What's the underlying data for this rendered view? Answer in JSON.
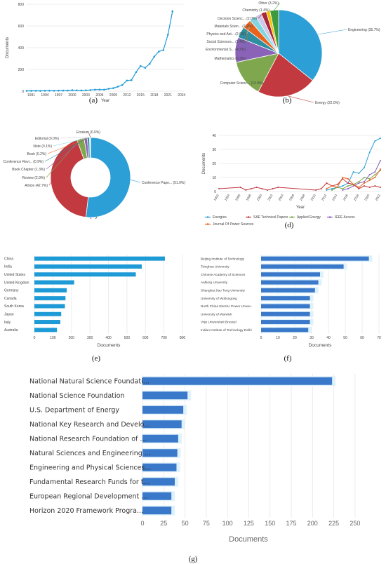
{
  "colors": {
    "accent": "#1e9bd7",
    "bar_inner": "#3a78c9",
    "bar_glow": "#dff2fb",
    "grid": "#e8e8e8"
  },
  "chart_data": [
    {
      "id": "a",
      "type": "line",
      "caption": "(a)",
      "xlabel": "Year",
      "ylabel": "Documents",
      "xlim": [
        1990,
        2024.5
      ],
      "ylim": [
        0,
        800
      ],
      "xticks": [
        "1991",
        "1994",
        "1997",
        "2000",
        "2003",
        "2006",
        "2009",
        "2012",
        "2015",
        "2018",
        "2021",
        "2024"
      ],
      "yticks": [
        "0",
        "200",
        "400",
        "600",
        "800"
      ],
      "x": [
        1990,
        1991,
        1992,
        1993,
        1994,
        1995,
        1996,
        1997,
        1998,
        1999,
        2000,
        2001,
        2002,
        2003,
        2004,
        2005,
        2006,
        2007,
        2008,
        2009,
        2010,
        2011,
        2012,
        2013,
        2014,
        2015,
        2016,
        2017,
        2018,
        2019,
        2020,
        2021,
        2022
      ],
      "values": [
        3,
        3,
        4,
        3,
        4,
        5,
        4,
        5,
        6,
        6,
        9,
        8,
        7,
        8,
        11,
        14,
        15,
        14,
        22,
        28,
        42,
        58,
        98,
        102,
        175,
        232,
        215,
        252,
        318,
        365,
        378,
        520,
        735
      ]
    },
    {
      "id": "b",
      "type": "pie",
      "caption": "(b)",
      "slices": [
        {
          "label": "Engineering (35.7%)",
          "value": 35.7,
          "color": "#2b9fd6"
        },
        {
          "label": "Energy (22.0%)",
          "value": 22.0,
          "color": "#c2393f"
        },
        {
          "label": "Computer Scienc... (13.9%)",
          "value": 13.9,
          "color": "#7fa84e"
        },
        {
          "label": "Mathematics (9.3%)",
          "value": 9.3,
          "color": "#8a63b8"
        },
        {
          "label": "Environmental S... (4.2%)",
          "value": 4.2,
          "color": "#2f8fa0"
        },
        {
          "label": "Social Sciences... (3.4%)",
          "value": 3.4,
          "color": "#e8641d"
        },
        {
          "label": "Physics and Ast... (2.6%)",
          "value": 2.6,
          "color": "#7ed6e0"
        },
        {
          "label": "Materials Scien... (2.2%)",
          "value": 2.2,
          "color": "#d0c8e8"
        },
        {
          "label": "Decision Scienc... (2.0%)",
          "value": 2.0,
          "color": "#a8283a"
        },
        {
          "label": "Chemistry (1.4%)",
          "value": 1.4,
          "color": "#f2c300"
        },
        {
          "label": "Other (3.2%)",
          "value": 3.2,
          "color": "#3f9a3f"
        }
      ]
    },
    {
      "id": "c",
      "type": "pie",
      "caption": "(c)",
      "slices": [
        {
          "label": "Conference Pape... (51.9%)",
          "value": 51.9,
          "color": "#2b9fd6"
        },
        {
          "label": "Article (42.7%)",
          "value": 42.7,
          "color": "#c2393f"
        },
        {
          "label": "Review (2.9%)",
          "value": 2.9,
          "color": "#7fa84e"
        },
        {
          "label": "Book Chapter (1.3%)",
          "value": 1.3,
          "color": "#8a63b8"
        },
        {
          "label": "Conference Revi... (0.9%)",
          "value": 0.9,
          "color": "#2f8fa0"
        },
        {
          "label": "Book (0.2%)",
          "value": 0.2,
          "color": "#e8641d"
        },
        {
          "label": "Note (0.1%)",
          "value": 0.1,
          "color": "#7ed6e0"
        },
        {
          "label": "Editorial (0.0%)",
          "value": 0.05,
          "color": "#d0c8e8"
        },
        {
          "label": "Erratum (0.0%)",
          "value": 0.05,
          "color": "#a8283a"
        }
      ]
    },
    {
      "id": "d",
      "type": "line",
      "caption": "(d)",
      "xlabel": "Year",
      "ylabel": "Documents",
      "xlim": [
        1992,
        2022
      ],
      "ylim": [
        0,
        40
      ],
      "xticks": [
        "1992",
        "1994",
        "1996",
        "1998",
        "2000",
        "2002",
        "2004",
        "2006",
        "2008",
        "2010",
        "2012",
        "2014",
        "2016",
        "2018",
        "2020",
        "2022"
      ],
      "yticks": [
        "0",
        "10",
        "20",
        "30",
        "40"
      ],
      "series": [
        {
          "name": "Energies",
          "color": "#2b9fd6",
          "x": [
            2012,
            2013,
            2014,
            2015,
            2016,
            2017,
            2018,
            2019,
            2020,
            2021,
            2022
          ],
          "y": [
            1,
            2,
            3,
            4,
            6,
            14,
            13,
            17,
            28,
            36,
            38
          ]
        },
        {
          "name": "SAE Technical Papers",
          "color": "#c2393f",
          "x": [
            1992,
            1996,
            1997,
            1998,
            1999,
            2000,
            2001,
            2002,
            2003,
            2010,
            2011,
            2012,
            2013,
            2014,
            2015,
            2016,
            2017,
            2018,
            2019,
            2020,
            2021,
            2022
          ],
          "y": [
            2,
            3,
            1,
            2,
            3,
            2,
            1,
            2,
            3,
            1,
            2,
            6,
            4,
            5,
            9,
            6,
            5,
            2,
            4,
            3,
            4,
            3
          ]
        },
        {
          "name": "Applied Energy",
          "color": "#7fa84e",
          "x": [
            2013,
            2014,
            2015,
            2016,
            2017,
            2018,
            2019,
            2020,
            2021,
            2022
          ],
          "y": [
            1,
            3,
            2,
            4,
            5,
            7,
            10,
            9,
            12,
            15
          ]
        },
        {
          "name": "IEEE Access",
          "color": "#8a63b8",
          "x": [
            2015,
            2016,
            2017,
            2018,
            2019,
            2020,
            2021,
            2022
          ],
          "y": [
            1,
            2,
            4,
            6,
            7,
            12,
            14,
            22
          ]
        },
        {
          "name": "Journal Of Power Sources",
          "color": "#e8641d",
          "x": [
            2012,
            2013,
            2014,
            2015,
            2016,
            2017,
            2018,
            2019,
            2020,
            2021,
            2022
          ],
          "y": [
            2,
            4,
            3,
            10,
            9,
            5,
            3,
            6,
            8,
            10,
            16
          ]
        }
      ]
    },
    {
      "id": "e",
      "type": "bar",
      "orientation": "horizontal",
      "caption": "(e)",
      "xlabel": "Documents",
      "xlim": [
        0,
        800
      ],
      "xticks": [
        "0",
        "100",
        "200",
        "300",
        "400",
        "500",
        "600",
        "700",
        "800"
      ],
      "categories": [
        "China",
        "India",
        "United States",
        "United Kingdom",
        "Germany",
        "Canada",
        "South Korea",
        "Japan",
        "Italy",
        "Australia"
      ],
      "values": [
        705,
        580,
        548,
        215,
        175,
        168,
        165,
        145,
        140,
        122
      ]
    },
    {
      "id": "f",
      "type": "bar",
      "orientation": "horizontal",
      "caption": "(f)",
      "xlabel": "Documents",
      "xlim": [
        0,
        70
      ],
      "xticks": [
        "0",
        "10",
        "20",
        "30",
        "40",
        "50",
        "60",
        "70"
      ],
      "categories": [
        "Beijing Institute of Technology",
        "Tsinghua University",
        "Chinese Academy of Sciences",
        "Aalborg University",
        "Shanghai Jiao Tong University",
        "University of Wollongong",
        "North China Electric Power Univer...",
        "University of Warwick",
        "Vrije Universiteit Brussel",
        "Indian Institute of Technology Delhi"
      ],
      "values": [
        64,
        49,
        35,
        34,
        32,
        29,
        29,
        29,
        29,
        28
      ]
    },
    {
      "id": "g",
      "type": "bar",
      "orientation": "horizontal",
      "caption": "(g)",
      "xlabel": "Documents",
      "xlim": [
        0,
        260
      ],
      "xticks": [
        "0",
        "25",
        "50",
        "75",
        "100",
        "125",
        "150",
        "175",
        "200",
        "225",
        "250"
      ],
      "categories": [
        "National Natural Science Foundati...",
        "National Science Foundation",
        "U.S. Department of Energy",
        "National Key Research and Develo...",
        "National Research Foundation of ...",
        "Natural Sciences and Engineering ...",
        "Engineering and Physical Sciences...",
        "Fundamental Research Funds for t...",
        "European Regional Development ...",
        "Horizon 2020 Framework Progra..."
      ],
      "values": [
        223,
        53,
        48,
        46,
        42,
        41,
        40,
        38,
        34,
        34
      ]
    }
  ]
}
